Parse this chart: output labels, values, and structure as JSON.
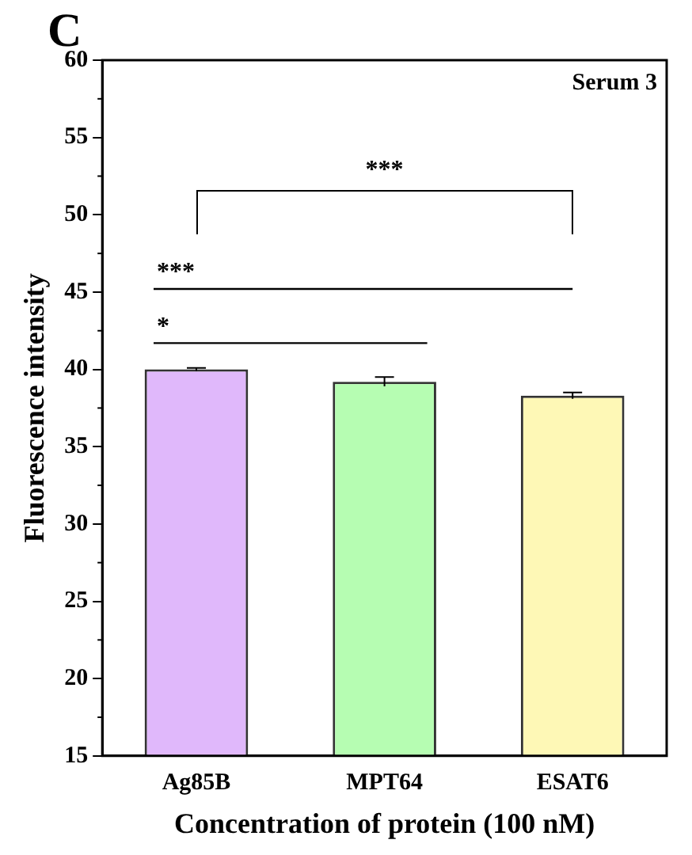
{
  "chart_data": {
    "type": "bar",
    "xlabel": "Concentration of protein (100 nM)",
    "ylabel": "Fluorescence intensity",
    "categories": [
      "Ag85B",
      "MPT64",
      "ESAT6"
    ],
    "values": [
      40.0,
      39.2,
      38.3
    ],
    "errors": [
      0.1,
      0.3,
      0.2
    ],
    "colors": [
      "#e0b8fb",
      "#b6fdb2",
      "#fef8b6"
    ],
    "ylim": [
      15,
      60
    ],
    "yticks": [
      15,
      20,
      25,
      30,
      35,
      40,
      45,
      50,
      55,
      60
    ],
    "grid": false,
    "legend": false,
    "annotations": [
      "C",
      "Serum 3",
      "***"
    ],
    "ref_lines": [
      {
        "axis": "y",
        "value": 41.7,
        "label": "*"
      },
      {
        "axis": "y",
        "value": 45.2,
        "label": "***"
      }
    ]
  }
}
